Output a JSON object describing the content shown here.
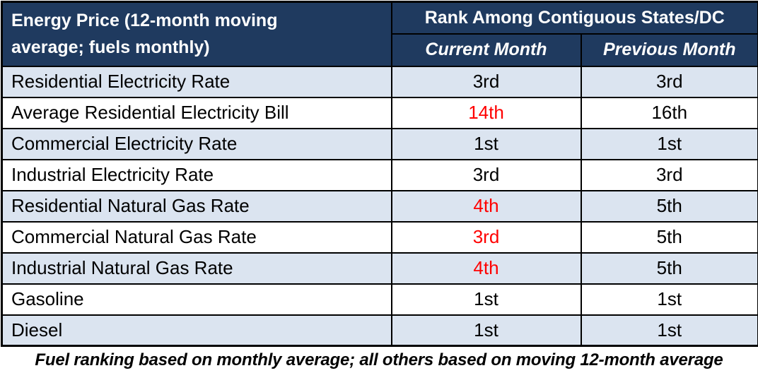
{
  "colors": {
    "header_bg": "#1f3a5f",
    "header_text": "#ffffff",
    "row_alt_bg": "#dbe4f0",
    "row_bg": "#ffffff",
    "highlight_red": "#ff0000",
    "border": "#000000"
  },
  "chart_data": {
    "type": "table",
    "title": "Energy Price (12-month moving average; fuels monthly)",
    "column_group_header": "Rank Among Contiguous States/DC",
    "sub_headers": {
      "current": "Current Month",
      "previous": "Previous Month"
    },
    "rows": [
      {
        "label": "Residential Electricity Rate",
        "current": "3rd",
        "previous": "3rd",
        "current_red": false
      },
      {
        "label": "Average Residential Electricity Bill",
        "current": "14th",
        "previous": "16th",
        "current_red": true
      },
      {
        "label": "Commercial Electricity Rate",
        "current": "1st",
        "previous": "1st",
        "current_red": false
      },
      {
        "label": "Industrial Electricity Rate",
        "current": "3rd",
        "previous": "3rd",
        "current_red": false
      },
      {
        "label": "Residential Natural Gas Rate",
        "current": "4th",
        "previous": "5th",
        "current_red": true
      },
      {
        "label": "Commercial Natural Gas Rate",
        "current": "3rd",
        "previous": "5th",
        "current_red": true
      },
      {
        "label": "Industrial Natural Gas Rate",
        "current": "4th",
        "previous": "5th",
        "current_red": true
      },
      {
        "label": "Gasoline",
        "current": "1st",
        "previous": "1st",
        "current_red": false
      },
      {
        "label": "Diesel",
        "current": "1st",
        "previous": "1st",
        "current_red": false
      }
    ],
    "footnote": "Fuel ranking based on monthly average; all others based on moving 12-month average"
  }
}
